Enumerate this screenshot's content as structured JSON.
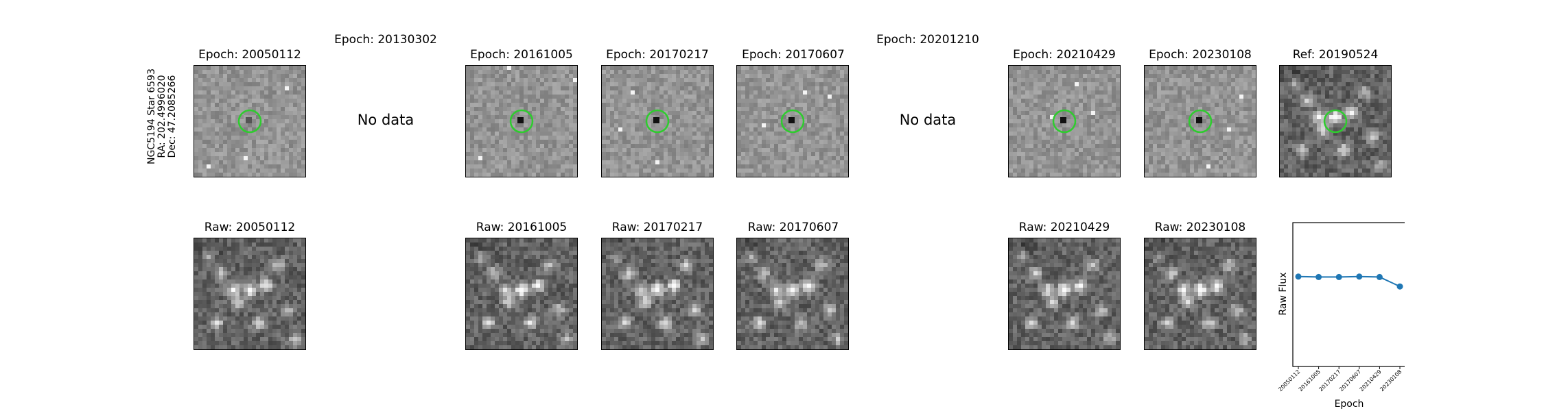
{
  "star": {
    "line1": "NGC5194 Star 6593",
    "line2": "RA: 202.4996020",
    "line3": "Dec: 47.2085266"
  },
  "diff_titles": [
    "Epoch: 20050112",
    "Epoch: 20130302",
    "Epoch: 20161005",
    "Epoch: 20170217",
    "Epoch: 20170607",
    "Epoch: 20201210",
    "Epoch: 20210429",
    "Epoch: 20230108"
  ],
  "ref_title": "Ref: 20190524",
  "no_data_label": "No data",
  "raw_titles": [
    "Raw: 20050112",
    "Raw: 20161005",
    "Raw: 20170217",
    "Raw: 20170607",
    "Raw: 20210429",
    "Raw: 20230108"
  ],
  "colors": {
    "circle": "#2ecc2e",
    "line": "#1f77b4"
  },
  "chart_data": {
    "type": "line",
    "x": [
      "20050112",
      "20161005",
      "20170217",
      "20170607",
      "20210429",
      "20230108"
    ],
    "series": [
      {
        "values": [
          1.0,
          0.99,
          0.99,
          1.0,
          0.99,
          0.78
        ]
      }
    ],
    "xlabel": "Epoch",
    "ylabel": "Raw Flux",
    "ylim": [
      -1.0,
      2.2
    ],
    "yticks_shown": false
  }
}
